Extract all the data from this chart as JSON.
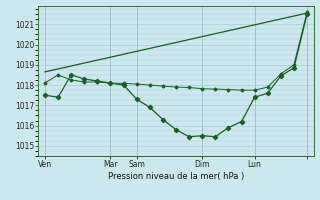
{
  "background_color": "#cce8ee",
  "grid_color": "#aaccd4",
  "line_color": "#1a5e20",
  "title": "Pression niveau de la mer( hPa )",
  "ylabel_ticks": [
    1015,
    1016,
    1017,
    1018,
    1019,
    1020,
    1021
  ],
  "ylim": [
    1014.5,
    1021.9
  ],
  "xlim": [
    -0.5,
    20.5
  ],
  "xlabel_ticks": [
    0,
    5,
    7,
    12,
    16,
    20
  ],
  "xlabel_labels": [
    "Ven",
    "Mar",
    "Sam",
    "Dim",
    "Lun",
    ""
  ],
  "series1_x": [
    0,
    1,
    2,
    3,
    4,
    5,
    6,
    7,
    8,
    9,
    10,
    11,
    12,
    13,
    14,
    15,
    16,
    17,
    18,
    19,
    20
  ],
  "series1_y": [
    1017.5,
    1017.4,
    1018.5,
    1018.3,
    1018.2,
    1018.1,
    1018.0,
    1017.3,
    1016.9,
    1016.3,
    1015.8,
    1015.45,
    1015.5,
    1015.45,
    1015.9,
    1016.2,
    1017.4,
    1017.6,
    1018.45,
    1018.85,
    1021.5
  ],
  "series2_x": [
    0,
    1,
    2,
    3,
    4,
    5,
    6,
    7,
    8,
    9,
    10,
    11,
    12,
    13,
    14,
    15,
    16,
    17,
    18,
    19,
    20
  ],
  "series2_y": [
    1018.1,
    1018.5,
    1018.25,
    1018.15,
    1018.15,
    1018.1,
    1018.08,
    1018.05,
    1018.0,
    1017.95,
    1017.9,
    1017.88,
    1017.82,
    1017.8,
    1017.78,
    1017.75,
    1017.75,
    1017.9,
    1018.55,
    1019.0,
    1021.6
  ],
  "series3_x": [
    0,
    20
  ],
  "series3_y": [
    1018.65,
    1021.55
  ],
  "vline_x": [
    0,
    5,
    7,
    12,
    16,
    20
  ],
  "figsize": [
    3.2,
    2.0
  ],
  "dpi": 100
}
